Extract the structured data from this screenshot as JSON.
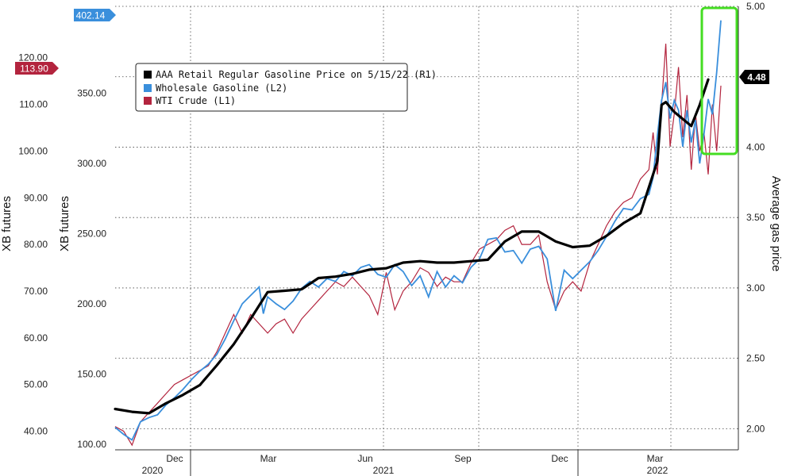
{
  "chart_data": {
    "type": "line",
    "title": "",
    "axes": {
      "left_outer": {
        "label": "XB futures",
        "ticks": [
          "40.00",
          "50.00",
          "60.00",
          "70.00",
          "80.00",
          "90.00",
          "100.00",
          "110.00",
          "120.00"
        ],
        "tick_values": [
          40,
          50,
          60,
          70,
          80,
          90,
          100,
          110,
          120
        ],
        "range": [
          36,
          131
        ]
      },
      "left_inner": {
        "label": "XB futures",
        "ticks": [
          "100.00",
          "150.00",
          "200.00",
          "250.00",
          "300.00",
          "350.00"
        ],
        "tick_values": [
          100,
          150,
          200,
          250,
          300,
          350
        ],
        "range": [
          96,
          412
        ]
      },
      "right": {
        "label": "Average gas price",
        "ticks": [
          "2.00",
          "2.50",
          "3.00",
          "3.50",
          "4.00",
          "4.50",
          "5.00"
        ],
        "tick_values": [
          2.0,
          2.5,
          3.0,
          3.5,
          4.0,
          4.5,
          5.0
        ],
        "range": [
          1.85,
          5.0
        ]
      },
      "x": {
        "month_ticks": [
          "Dec",
          "Mar",
          "Jun",
          "Sep",
          "Dec",
          "Mar"
        ],
        "year_ticks": [
          "2020",
          "2021",
          "2022"
        ]
      }
    },
    "legend": {
      "position": "top-left",
      "entries": [
        {
          "label": "AAA Retail Regular Gasoline Price on 5/15/22 (R1)",
          "color": "#000000"
        },
        {
          "label": "Wholesale Gasoline (L2)",
          "color": "#3a8fdc"
        },
        {
          "label": "WTI Crude (L1)",
          "color": "#b3243e"
        }
      ]
    },
    "last_value_tags": [
      {
        "series": "Wholesale Gasoline",
        "value": "402.14",
        "color": "#3a8fdc",
        "side": "left-inner"
      },
      {
        "series": "WTI Crude",
        "value": "113.90",
        "color": "#b3243e",
        "side": "left-outer"
      },
      {
        "series": "AAA Retail Regular Gasoline Price",
        "value": "4.48",
        "color": "#000000",
        "side": "right"
      }
    ],
    "highlight_box_color": "#44dd22",
    "series": [
      {
        "name": "AAA Retail Regular Gasoline Price",
        "axis": "right",
        "color": "#000000",
        "x": [
          0,
          4,
          8,
          12,
          16,
          20,
          24,
          28,
          32,
          36,
          40,
          44,
          48,
          52,
          56,
          60,
          64,
          68,
          72,
          76,
          80,
          84,
          88,
          92,
          96,
          100,
          104,
          108,
          112,
          116,
          120,
          124,
          128,
          128.5,
          129,
          130,
          132,
          134,
          136,
          138,
          140
        ],
        "values": [
          2.14,
          2.12,
          2.11,
          2.18,
          2.24,
          2.31,
          2.45,
          2.6,
          2.78,
          2.97,
          2.98,
          2.99,
          3.07,
          3.08,
          3.1,
          3.13,
          3.14,
          3.18,
          3.19,
          3.18,
          3.18,
          3.19,
          3.2,
          3.33,
          3.4,
          3.4,
          3.33,
          3.29,
          3.3,
          3.37,
          3.46,
          3.53,
          3.9,
          4.1,
          4.3,
          4.32,
          4.25,
          4.2,
          4.15,
          4.3,
          4.48
        ]
      },
      {
        "name": "Wholesale Gasoline",
        "axis": "left_inner",
        "color": "#3a8fdc",
        "x": [
          0,
          2,
          4,
          6,
          8,
          10,
          12,
          14,
          16,
          18,
          20,
          22,
          24,
          26,
          28,
          30,
          32,
          34,
          35,
          36,
          38,
          40,
          42,
          44,
          46,
          48,
          50,
          52,
          54,
          56,
          58,
          60,
          62,
          64,
          66,
          68,
          70,
          72,
          74,
          76,
          78,
          80,
          82,
          84,
          86,
          88,
          90,
          92,
          94,
          96,
          98,
          100,
          102,
          104,
          106,
          108,
          110,
          112,
          114,
          116,
          118,
          120,
          122,
          124,
          126,
          127,
          128,
          129,
          130,
          131,
          132,
          133,
          134,
          135,
          136,
          137,
          138,
          139,
          140,
          141,
          142,
          143
        ],
        "values": [
          112,
          107,
          103,
          116,
          119,
          121,
          128,
          133,
          139,
          146,
          152,
          157,
          164,
          175,
          188,
          200,
          206,
          212,
          193,
          205,
          200,
          196,
          202,
          211,
          216,
          212,
          218,
          216,
          223,
          220,
          226,
          228,
          221,
          219,
          228,
          223,
          213,
          220,
          205,
          223,
          212,
          220,
          215,
          226,
          232,
          246,
          247,
          237,
          238,
          229,
          239,
          241,
          232,
          195,
          224,
          218,
          224,
          230,
          238,
          248,
          259,
          268,
          267,
          275,
          278,
          290,
          320,
          345,
          358,
          332,
          345,
          338,
          312,
          338,
          315,
          331,
          300,
          321,
          346,
          335,
          365,
          402
        ]
      },
      {
        "name": "WTI Crude",
        "axis": "left_outer",
        "color": "#b3243e",
        "x": [
          0,
          2,
          4,
          6,
          8,
          10,
          12,
          14,
          16,
          18,
          20,
          22,
          24,
          26,
          28,
          30,
          32,
          34,
          36,
          38,
          40,
          42,
          44,
          46,
          48,
          50,
          52,
          54,
          56,
          58,
          60,
          62,
          64,
          66,
          68,
          70,
          72,
          74,
          76,
          78,
          80,
          82,
          84,
          86,
          88,
          90,
          92,
          94,
          96,
          98,
          100,
          102,
          104,
          106,
          108,
          110,
          112,
          114,
          116,
          118,
          120,
          122,
          124,
          126,
          127,
          128,
          129,
          130,
          131,
          132,
          133,
          134,
          135,
          136,
          137,
          138,
          139,
          140,
          141,
          142,
          143
        ],
        "values": [
          41,
          40,
          37,
          42,
          44,
          46,
          48,
          50,
          51,
          52,
          53,
          54,
          57,
          61,
          65,
          61,
          65,
          63,
          61,
          63,
          64,
          61,
          64,
          66,
          68,
          70,
          72,
          71,
          73,
          71,
          69,
          65,
          74,
          66,
          70,
          72,
          75,
          74,
          71,
          73,
          72,
          72,
          76,
          79,
          80,
          81,
          83,
          84,
          80,
          80,
          82,
          72,
          66,
          70,
          72,
          70,
          76,
          80,
          84,
          87,
          89,
          90,
          94,
          96,
          104,
          95,
          110,
          123,
          101,
          108,
          118,
          103,
          112,
          96,
          108,
          100,
          104,
          95,
          110,
          100,
          114
        ]
      }
    ]
  }
}
